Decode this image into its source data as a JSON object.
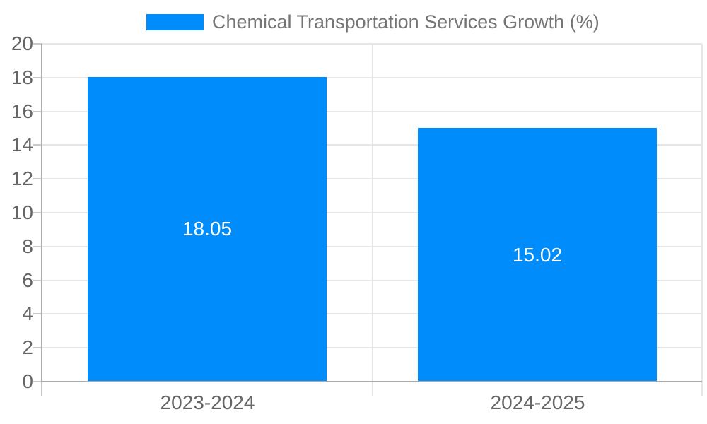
{
  "chart_data": {
    "type": "bar",
    "title": "Chemical Transportation Services Growth (%)",
    "categories": [
      "2023-2024",
      "2024-2025"
    ],
    "values": [
      18.05,
      15.02
    ],
    "value_labels": [
      "18.05",
      "15.02"
    ],
    "xlabel": "",
    "ylabel": "",
    "ylim": [
      0,
      20
    ],
    "yticks": [
      0,
      2,
      4,
      6,
      8,
      10,
      12,
      14,
      16,
      18,
      20
    ],
    "grid": true,
    "legend_position": "top",
    "colors": {
      "bar": "#008cfa",
      "grid": "#e6e6e6",
      "axis": "#ababab",
      "tick": "#c9c9c9",
      "axis_text": "#666666",
      "legend_text": "#757575",
      "value_text": "#ffffff"
    }
  }
}
